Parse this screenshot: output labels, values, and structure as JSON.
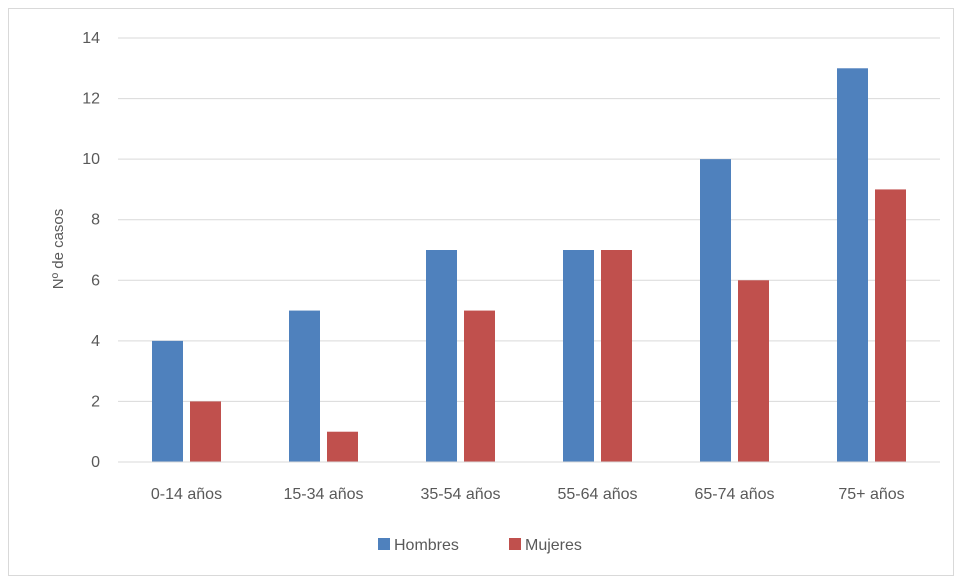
{
  "chart_data": {
    "type": "bar",
    "title": "",
    "xlabel": "",
    "ylabel": "Nº de casos",
    "ylim": [
      0,
      14
    ],
    "yticks": [
      0,
      2,
      4,
      6,
      8,
      10,
      12,
      14
    ],
    "grid": true,
    "legend_position": "bottom",
    "categories": [
      "0-14 años",
      "15-34 años",
      "35-54 años",
      "55-64 años",
      "65-74 años",
      "75+ años"
    ],
    "series": [
      {
        "name": "Hombres",
        "color": "#4f81bd",
        "values": [
          4,
          5,
          7,
          7,
          10,
          13
        ]
      },
      {
        "name": "Mujeres",
        "color": "#c0504d",
        "values": [
          2,
          1,
          5,
          7,
          6,
          9
        ]
      }
    ]
  }
}
